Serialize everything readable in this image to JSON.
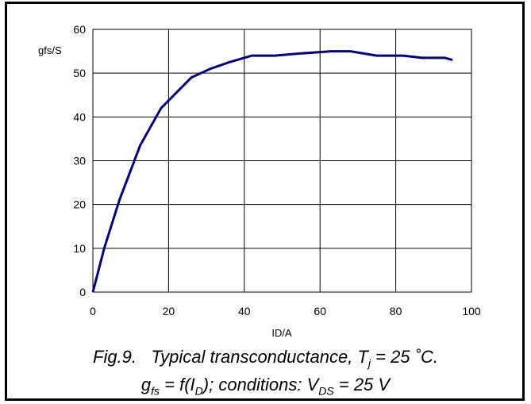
{
  "chart_data": {
    "type": "line",
    "title": "",
    "xlabel": "ID/A",
    "ylabel": "gfs/S",
    "xlim": [
      0,
      100
    ],
    "ylim": [
      0,
      60
    ],
    "xticks": [
      "0",
      "20",
      "40",
      "60",
      "80",
      "100"
    ],
    "yticks": [
      "0",
      "10",
      "20",
      "30",
      "40",
      "50",
      "60"
    ],
    "grid": true,
    "series": [
      {
        "color": "#000080",
        "x": [
          0,
          3,
          7,
          12.5,
          18,
          26,
          31,
          36,
          42,
          48,
          55,
          63,
          68,
          75,
          82,
          87,
          93,
          95
        ],
        "y": [
          0,
          10,
          21,
          33.5,
          42,
          49,
          51,
          52.5,
          54,
          54,
          54.5,
          55,
          55,
          54,
          54,
          53.5,
          53.5,
          53
        ]
      }
    ]
  },
  "caption": {
    "line1": {
      "fig": "Fig.9.",
      "text": "Typical transconductance, T",
      "sub": "j",
      "rest": " = 25 ˚C."
    },
    "line2": {
      "g": "g",
      "g_sub": "fs",
      "mid": " = f(I",
      "i_sub": "D",
      "mid2": "); conditions: V",
      "v_sub": "DS",
      "end": " = 25 V"
    }
  }
}
